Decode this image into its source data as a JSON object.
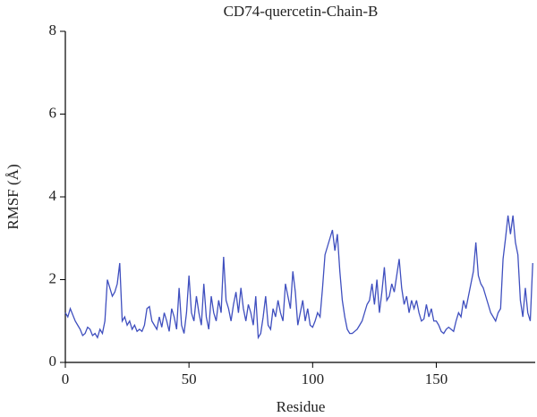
{
  "chart_data": {
    "type": "line",
    "title": "CD74-quercetin-Chain-B",
    "x_label": "Residue",
    "y_label": "RMSF (Å)",
    "x": [
      0,
      1,
      2,
      3,
      4,
      5,
      6,
      7,
      8,
      9,
      10,
      11,
      12,
      13,
      14,
      15,
      16,
      17,
      18,
      19,
      20,
      21,
      22,
      23,
      24,
      25,
      26,
      27,
      28,
      29,
      30,
      31,
      32,
      33,
      34,
      35,
      36,
      37,
      38,
      39,
      40,
      41,
      42,
      43,
      44,
      45,
      46,
      47,
      48,
      49,
      50,
      51,
      52,
      53,
      54,
      55,
      56,
      57,
      58,
      59,
      60,
      61,
      62,
      63,
      64,
      65,
      66,
      67,
      68,
      69,
      70,
      71,
      72,
      73,
      74,
      75,
      76,
      77,
      78,
      79,
      80,
      81,
      82,
      83,
      84,
      85,
      86,
      87,
      88,
      89,
      90,
      91,
      92,
      93,
      94,
      95,
      96,
      97,
      98,
      99,
      100,
      101,
      102,
      103,
      104,
      105,
      106,
      107,
      108,
      109,
      110,
      111,
      112,
      113,
      114,
      115,
      116,
      117,
      118,
      119,
      120,
      121,
      122,
      123,
      124,
      125,
      126,
      127,
      128,
      129,
      130,
      131,
      132,
      133,
      134,
      135,
      136,
      137,
      138,
      139,
      140,
      141,
      142,
      143,
      144,
      145,
      146,
      147,
      148,
      149,
      150,
      151,
      152,
      153,
      154,
      155,
      156,
      157,
      158,
      159,
      160,
      161,
      162,
      163,
      164,
      165,
      166,
      167,
      168,
      169,
      170,
      171,
      172,
      173,
      174,
      175,
      176,
      177,
      178,
      179,
      180,
      181,
      182,
      183,
      184,
      185,
      186,
      187,
      188,
      189
    ],
    "series": [
      {
        "name": "RMSF",
        "color": "#3f4fbf",
        "values": [
          1.2,
          1.1,
          1.3,
          1.15,
          1.0,
          0.9,
          0.8,
          0.65,
          0.7,
          0.85,
          0.8,
          0.65,
          0.7,
          0.6,
          0.8,
          0.7,
          1.0,
          2.0,
          1.8,
          1.6,
          1.7,
          1.9,
          2.4,
          1.0,
          1.1,
          0.9,
          1.0,
          0.8,
          0.9,
          0.75,
          0.8,
          0.75,
          0.9,
          1.3,
          1.35,
          1.0,
          0.9,
          0.8,
          1.1,
          0.85,
          1.2,
          1.0,
          0.75,
          1.3,
          1.1,
          0.8,
          1.8,
          0.9,
          0.7,
          1.2,
          2.1,
          1.2,
          1.0,
          1.6,
          1.2,
          0.9,
          1.9,
          1.1,
          0.8,
          1.6,
          1.2,
          1.0,
          1.5,
          1.2,
          2.55,
          1.5,
          1.3,
          1.0,
          1.4,
          1.7,
          1.2,
          1.8,
          1.3,
          1.0,
          1.4,
          1.2,
          0.9,
          1.6,
          0.6,
          0.7,
          1.1,
          1.6,
          0.9,
          0.8,
          1.3,
          1.1,
          1.5,
          1.2,
          1.0,
          1.9,
          1.6,
          1.3,
          2.2,
          1.7,
          0.9,
          1.2,
          1.5,
          1.0,
          1.3,
          0.9,
          0.85,
          1.0,
          1.2,
          1.1,
          1.8,
          2.6,
          2.8,
          3.0,
          3.2,
          2.7,
          3.1,
          2.2,
          1.5,
          1.1,
          0.8,
          0.7,
          0.7,
          0.75,
          0.8,
          0.9,
          1.0,
          1.2,
          1.4,
          1.5,
          1.9,
          1.4,
          2.0,
          1.2,
          1.7,
          2.3,
          1.5,
          1.6,
          1.9,
          1.7,
          2.1,
          2.5,
          1.8,
          1.4,
          1.6,
          1.2,
          1.5,
          1.3,
          1.5,
          1.2,
          1.0,
          1.05,
          1.4,
          1.1,
          1.3,
          1.0,
          1.0,
          0.9,
          0.75,
          0.7,
          0.8,
          0.85,
          0.8,
          0.75,
          1.0,
          1.2,
          1.1,
          1.5,
          1.3,
          1.6,
          1.9,
          2.2,
          2.9,
          2.1,
          1.9,
          1.8,
          1.6,
          1.4,
          1.2,
          1.1,
          1.0,
          1.2,
          1.3,
          2.5,
          3.0,
          3.55,
          3.1,
          3.55,
          2.9,
          2.6,
          1.5,
          1.1,
          1.8,
          1.2,
          1.0,
          2.4
        ]
      }
    ],
    "xlim": [
      0,
      190
    ],
    "xticks": [
      0,
      50,
      100,
      150
    ],
    "ylim": [
      0,
      8
    ],
    "yticks": [
      0,
      2,
      4,
      6,
      8
    ]
  }
}
